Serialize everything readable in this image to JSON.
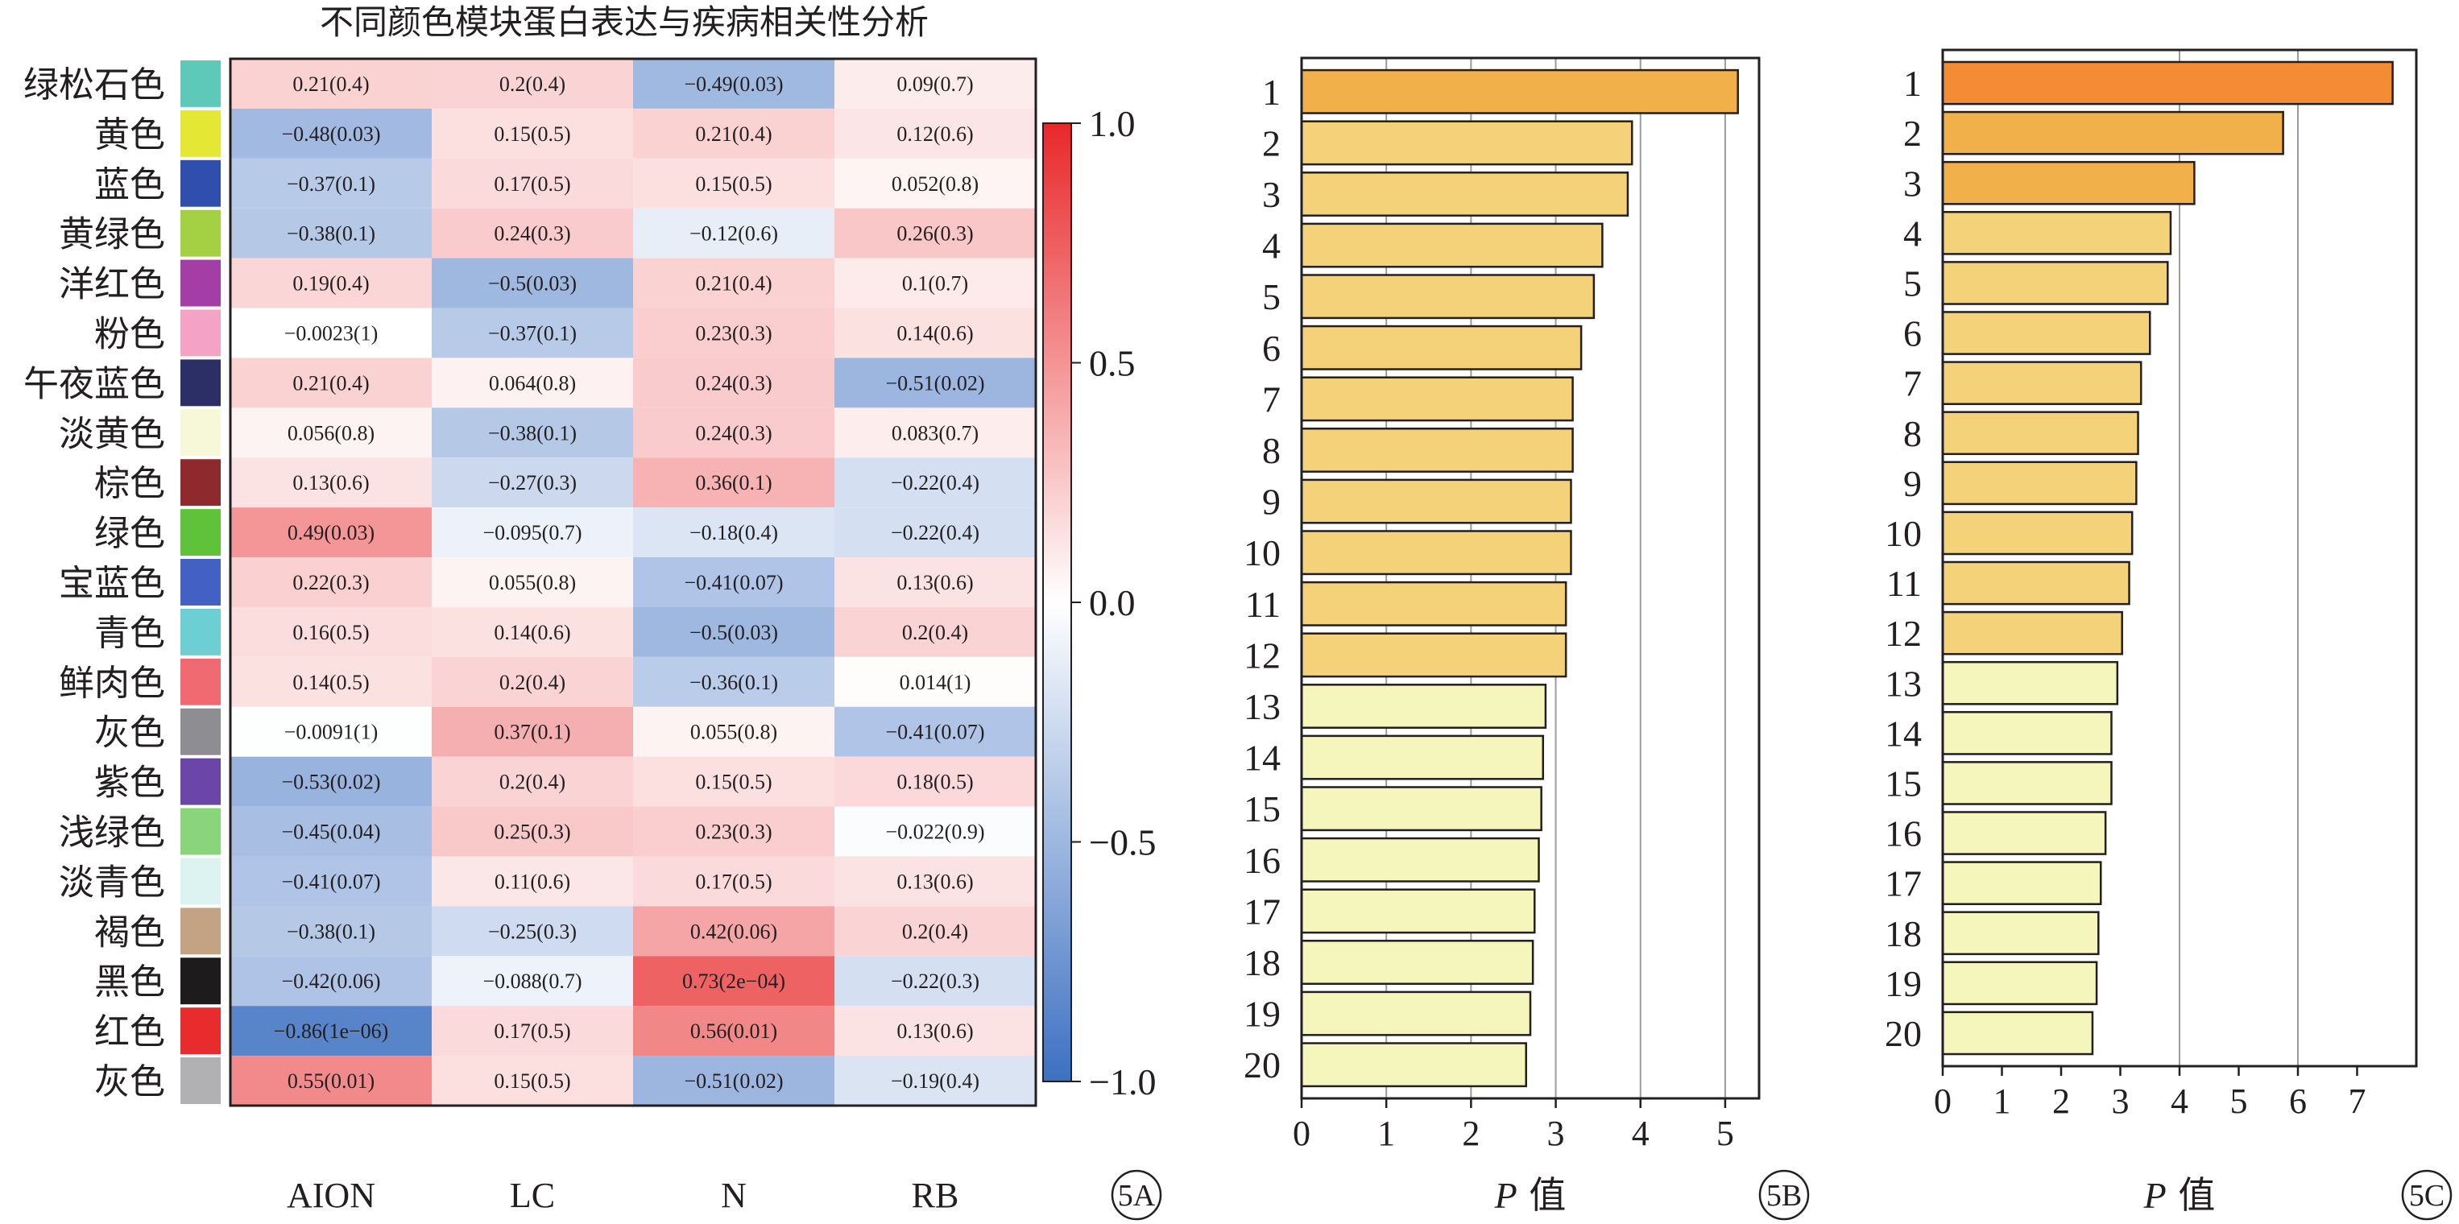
{
  "chart_data": [
    {
      "panel": "5A",
      "type": "heatmap",
      "title": "不同颜色模块蛋白表达与疾病相关性分析",
      "columns": [
        "AION",
        "LC",
        "N",
        "RB"
      ],
      "rows": [
        {
          "label": "绿松石色",
          "swatch": "#5ec9b8",
          "r": [
            0.21,
            0.2,
            -0.49,
            0.09
          ],
          "cells": [
            "0.21(0.4)",
            "0.2(0.4)",
            "−0.49(0.03)",
            "0.09(0.7)"
          ]
        },
        {
          "label": "黄色",
          "swatch": "#e4e834",
          "r": [
            -0.48,
            0.15,
            0.21,
            0.12
          ],
          "cells": [
            "−0.48(0.03)",
            "0.15(0.5)",
            "0.21(0.4)",
            "0.12(0.6)"
          ]
        },
        {
          "label": "蓝色",
          "swatch": "#2f4eae",
          "r": [
            -0.37,
            0.17,
            0.15,
            0.052
          ],
          "cells": [
            "−0.37(0.1)",
            "0.17(0.5)",
            "0.15(0.5)",
            "0.052(0.8)"
          ]
        },
        {
          "label": "黄绿色",
          "swatch": "#a3d143",
          "r": [
            -0.38,
            0.24,
            -0.12,
            0.26
          ],
          "cells": [
            "−0.38(0.1)",
            "0.24(0.3)",
            "−0.12(0.6)",
            "0.26(0.3)"
          ]
        },
        {
          "label": "洋红色",
          "swatch": "#a43ea6",
          "r": [
            0.19,
            -0.5,
            0.21,
            0.1
          ],
          "cells": [
            "0.19(0.4)",
            "−0.5(0.03)",
            "0.21(0.4)",
            "0.1(0.7)"
          ]
        },
        {
          "label": "粉色",
          "swatch": "#f4a3c6",
          "r": [
            -0.0023,
            -0.37,
            0.23,
            0.14
          ],
          "cells": [
            "−0.0023(1)",
            "−0.37(0.1)",
            "0.23(0.3)",
            "0.14(0.6)"
          ]
        },
        {
          "label": "午夜蓝色",
          "swatch": "#2c2f66",
          "r": [
            0.21,
            0.064,
            0.24,
            -0.51
          ],
          "cells": [
            "0.21(0.4)",
            "0.064(0.8)",
            "0.24(0.3)",
            "−0.51(0.02)"
          ]
        },
        {
          "label": "淡黄色",
          "swatch": "#f6f8d8",
          "r": [
            0.056,
            -0.38,
            0.24,
            0.083
          ],
          "cells": [
            "0.056(0.8)",
            "−0.38(0.1)",
            "0.24(0.3)",
            "0.083(0.7)"
          ]
        },
        {
          "label": "棕色",
          "swatch": "#8e2a2e",
          "r": [
            0.13,
            -0.27,
            0.36,
            -0.22
          ],
          "cells": [
            "0.13(0.6)",
            "−0.27(0.3)",
            "0.36(0.1)",
            "−0.22(0.4)"
          ]
        },
        {
          "label": "绿色",
          "swatch": "#5fc23a",
          "r": [
            0.49,
            -0.095,
            -0.18,
            -0.22
          ],
          "cells": [
            "0.49(0.03)",
            "−0.095(0.7)",
            "−0.18(0.4)",
            "−0.22(0.4)"
          ]
        },
        {
          "label": "宝蓝色",
          "swatch": "#4360c4",
          "r": [
            0.22,
            0.055,
            -0.41,
            0.13
          ],
          "cells": [
            "0.22(0.3)",
            "0.055(0.8)",
            "−0.41(0.07)",
            "0.13(0.6)"
          ]
        },
        {
          "label": "青色",
          "swatch": "#6dcfd3",
          "r": [
            0.16,
            0.14,
            -0.5,
            0.2
          ],
          "cells": [
            "0.16(0.5)",
            "0.14(0.6)",
            "−0.5(0.03)",
            "0.2(0.4)"
          ]
        },
        {
          "label": "鲜肉色",
          "swatch": "#f06a72",
          "r": [
            0.14,
            0.2,
            -0.36,
            0.014
          ],
          "cells": [
            "0.14(0.5)",
            "0.2(0.4)",
            "−0.36(0.1)",
            "0.014(1)"
          ]
        },
        {
          "label": "灰色",
          "swatch": "#8e8d92",
          "r": [
            -0.0091,
            0.37,
            0.055,
            -0.41
          ],
          "cells": [
            "−0.0091(1)",
            "0.37(0.1)",
            "0.055(0.8)",
            "−0.41(0.07)"
          ]
        },
        {
          "label": "紫色",
          "swatch": "#6b45a8",
          "r": [
            -0.53,
            0.2,
            0.15,
            0.18
          ],
          "cells": [
            "−0.53(0.02)",
            "0.2(0.4)",
            "0.15(0.5)",
            "0.18(0.5)"
          ]
        },
        {
          "label": "浅绿色",
          "swatch": "#8ad47c",
          "r": [
            -0.45,
            0.25,
            0.23,
            -0.022
          ],
          "cells": [
            "−0.45(0.04)",
            "0.25(0.3)",
            "0.23(0.3)",
            "−0.022(0.9)"
          ]
        },
        {
          "label": "淡青色",
          "swatch": "#dcf3f2",
          "r": [
            -0.41,
            0.11,
            0.17,
            0.13
          ],
          "cells": [
            "−0.41(0.07)",
            "0.11(0.6)",
            "0.17(0.5)",
            "0.13(0.6)"
          ]
        },
        {
          "label": "褐色",
          "swatch": "#c3a384",
          "r": [
            -0.38,
            -0.25,
            0.42,
            0.2
          ],
          "cells": [
            "−0.38(0.1)",
            "−0.25(0.3)",
            "0.42(0.06)",
            "0.2(0.4)"
          ]
        },
        {
          "label": "黑色",
          "swatch": "#1d1b1c",
          "r": [
            -0.42,
            -0.088,
            0.73,
            -0.22
          ],
          "cells": [
            "−0.42(0.06)",
            "−0.088(0.7)",
            "0.73(2e−04)",
            "−0.22(0.3)"
          ]
        },
        {
          "label": "红色",
          "swatch": "#e82b2c",
          "r": [
            -0.86,
            0.17,
            0.56,
            0.13
          ],
          "cells": [
            "−0.86(1e−06)",
            "0.17(0.5)",
            "0.56(0.01)",
            "0.13(0.6)"
          ]
        },
        {
          "label": "灰色",
          "swatch": "#b1b1b3",
          "r": [
            0.55,
            0.15,
            -0.51,
            -0.19
          ],
          "cells": [
            "0.55(0.01)",
            "0.15(0.5)",
            "−0.51(0.02)",
            "−0.19(0.4)"
          ]
        }
      ],
      "colorbar": {
        "range": [
          -1,
          1
        ],
        "ticks": [
          "1.0",
          "0.5",
          "0.0",
          "−0.5",
          "−1.0"
        ],
        "tick_values": [
          1,
          0.5,
          0,
          -0.5,
          -1
        ],
        "low_color": "#3d70c1",
        "mid_color": "#ffffff",
        "high_color": "#e8282b"
      },
      "panel_label": "5A"
    },
    {
      "panel": "5B",
      "type": "bar",
      "orientation": "horizontal",
      "categories": [
        "1",
        "2",
        "3",
        "4",
        "5",
        "6",
        "7",
        "8",
        "9",
        "10",
        "11",
        "12",
        "13",
        "14",
        "15",
        "16",
        "17",
        "18",
        "19",
        "20"
      ],
      "values": [
        5.15,
        3.9,
        3.85,
        3.55,
        3.45,
        3.3,
        3.2,
        3.2,
        3.18,
        3.18,
        3.12,
        3.12,
        2.88,
        2.85,
        2.83,
        2.8,
        2.75,
        2.73,
        2.7,
        2.65
      ],
      "colors": [
        "#f2b04a",
        "#f3d27a",
        "#f3d27a",
        "#f3d27a",
        "#f3d27a",
        "#f3d27a",
        "#f3d27a",
        "#f3d27a",
        "#f3d27a",
        "#f3d27a",
        "#f3d27a",
        "#f3d27a",
        "#f5f6bc",
        "#f5f6bc",
        "#f5f6bc",
        "#f5f6bc",
        "#f5f6bc",
        "#f5f6bc",
        "#f5f6bc",
        "#f5f6bc"
      ],
      "xlim": [
        0,
        5.4
      ],
      "xticks": [
        0,
        1,
        2,
        3,
        4,
        5
      ],
      "gridlines": [
        1,
        2,
        3,
        4,
        5
      ],
      "xlabel_italic": "P",
      "xlabel_rest": " 值",
      "panel_label": "5B"
    },
    {
      "panel": "5C",
      "type": "bar",
      "orientation": "horizontal",
      "categories": [
        "1",
        "2",
        "3",
        "4",
        "5",
        "6",
        "7",
        "8",
        "9",
        "10",
        "11",
        "12",
        "13",
        "14",
        "15",
        "16",
        "17",
        "18",
        "19",
        "20"
      ],
      "values": [
        7.6,
        5.75,
        4.25,
        3.85,
        3.8,
        3.5,
        3.35,
        3.3,
        3.27,
        3.2,
        3.15,
        3.03,
        2.95,
        2.85,
        2.85,
        2.75,
        2.67,
        2.63,
        2.6,
        2.53
      ],
      "colors": [
        "#f38c34",
        "#f2b04a",
        "#f2b04a",
        "#f3d27a",
        "#f3d27a",
        "#f3d27a",
        "#f3d27a",
        "#f3d27a",
        "#f3d27a",
        "#f3d27a",
        "#f3d27a",
        "#f3d27a",
        "#f5f6bc",
        "#f5f6bc",
        "#f5f6bc",
        "#f5f6bc",
        "#f5f6bc",
        "#f5f6bc",
        "#f5f6bc",
        "#f5f6bc"
      ],
      "xlim": [
        0,
        8
      ],
      "xticks": [
        0,
        1,
        2,
        3,
        4,
        5,
        6,
        7
      ],
      "gridlines": [
        4,
        6
      ],
      "xlabel_italic": "P",
      "xlabel_rest": " 值",
      "panel_label": "5C"
    }
  ]
}
